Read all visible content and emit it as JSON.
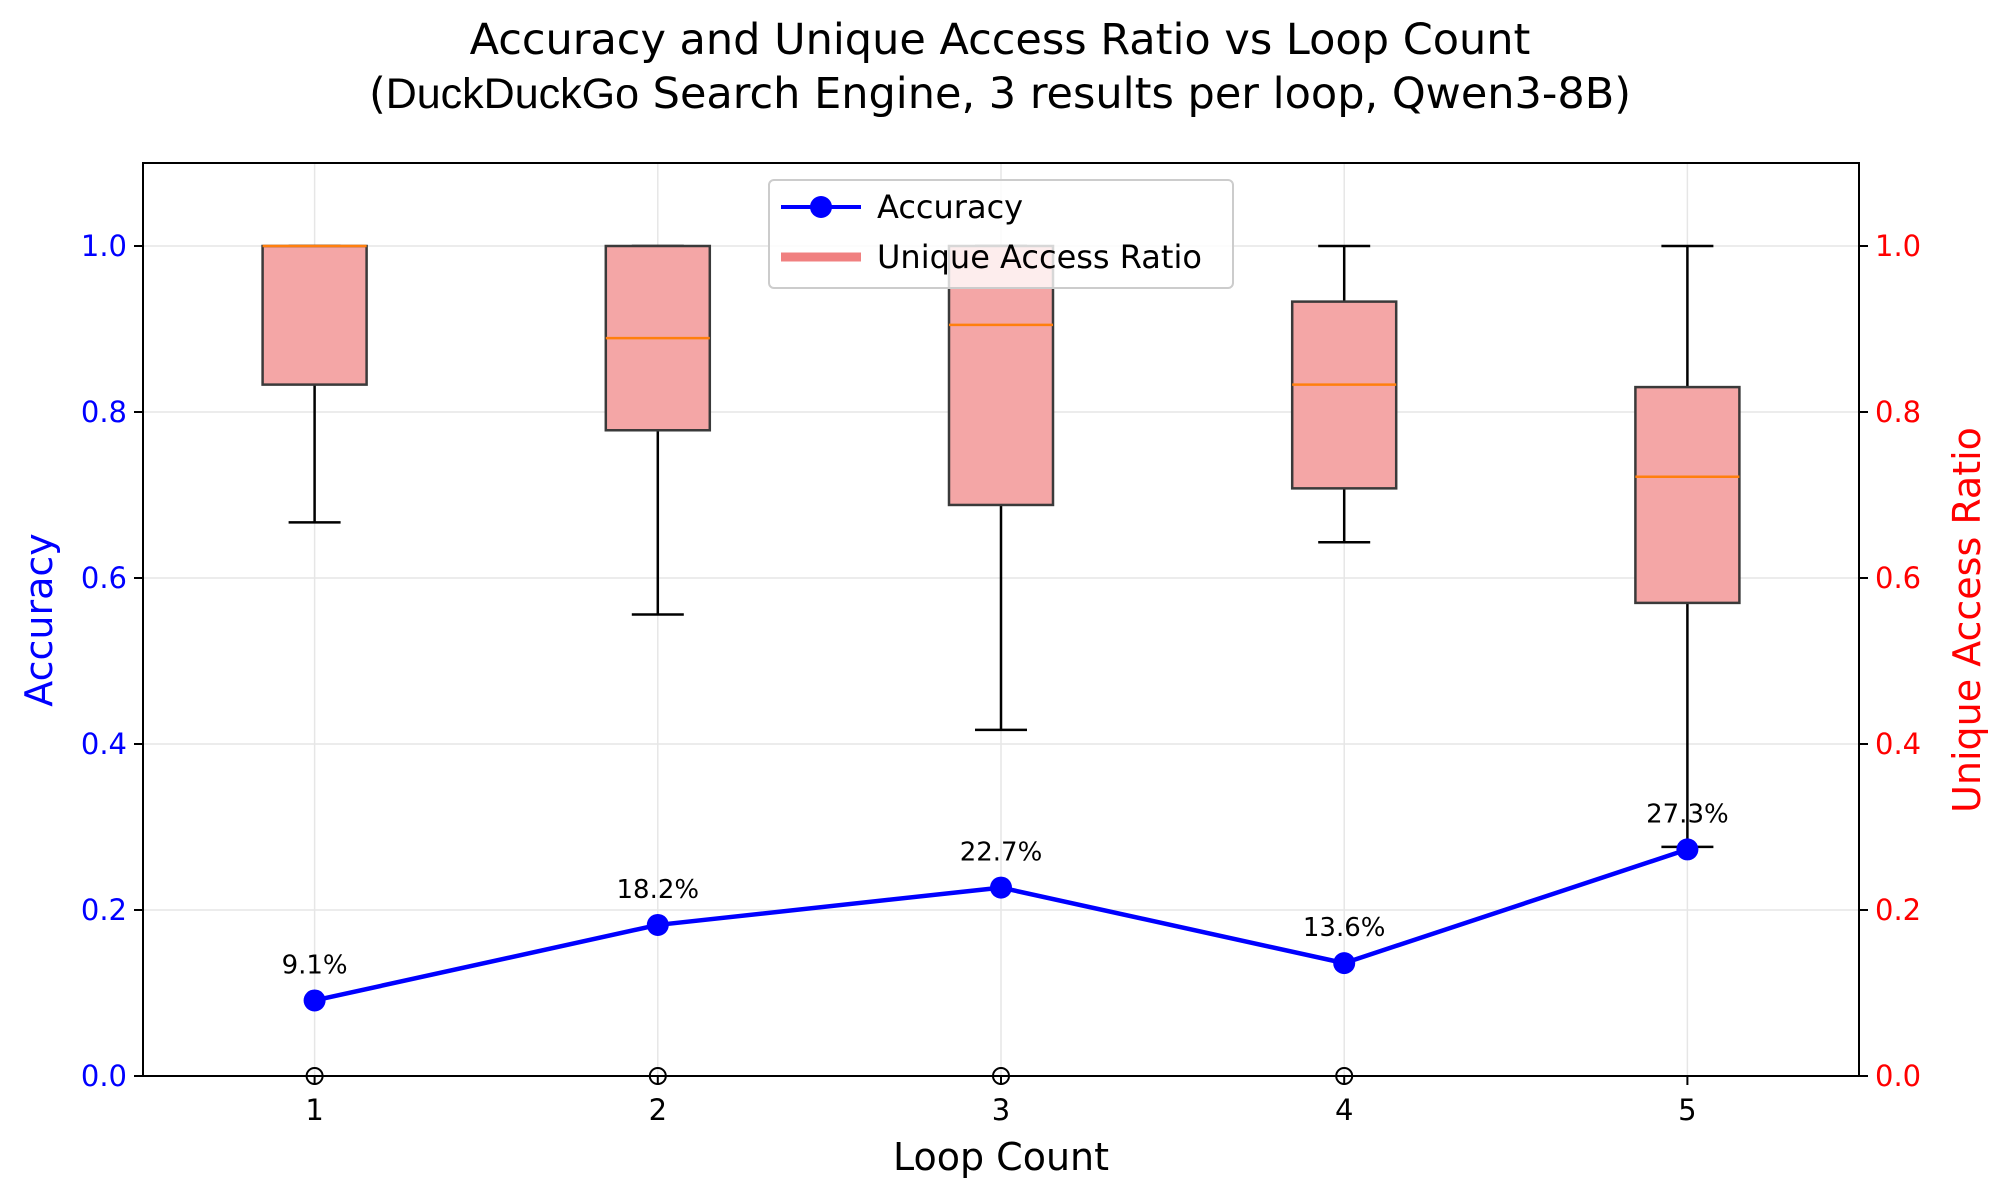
{
  "chart_data": {
    "type": "line",
    "title_line1": "Accuracy and Unique Access Ratio vs Loop Count",
    "title_line2_open": "(",
    "title_highlight": "DuckDuckGo",
    "title_line2_rest": " Search Engine, 3 results per loop, Qwen3-8B)",
    "xlabel": "Loop Count",
    "ylabel_left": "Accuracy",
    "ylabel_right": "Unique Access Ratio",
    "x": [
      1,
      2,
      3,
      4,
      5
    ],
    "x_tick_labels": [
      "1",
      "2",
      "3",
      "4",
      "5"
    ],
    "xlim": [
      0.5,
      5.5
    ],
    "ylim_left": [
      0.0,
      1.1
    ],
    "ylim_right": [
      0.0,
      1.1
    ],
    "y_ticks": [
      0.0,
      0.2,
      0.4,
      0.6,
      0.8,
      1.0
    ],
    "y_tick_labels": [
      "0.0",
      "0.2",
      "0.4",
      "0.6",
      "0.8",
      "1.0"
    ],
    "grid": true,
    "legend_position": "top-center",
    "series": [
      {
        "name": "Accuracy",
        "type": "line",
        "axis": "left",
        "color": "#0000ff",
        "values": [
          0.091,
          0.182,
          0.227,
          0.136,
          0.273
        ],
        "labels": [
          "9.1%",
          "18.2%",
          "22.7%",
          "13.6%",
          "27.3%"
        ]
      },
      {
        "name": "Unique Access Ratio",
        "type": "box",
        "axis": "right",
        "color": "#f08080",
        "boxes": [
          {
            "whislo": 0.667,
            "q1": 0.833,
            "med": 1.0,
            "q3": 1.0,
            "whishi": 1.0,
            "fliers": [
              0.0
            ]
          },
          {
            "whislo": 0.556,
            "q1": 0.778,
            "med": 0.889,
            "q3": 1.0,
            "whishi": 1.0,
            "fliers": [
              0.0
            ]
          },
          {
            "whislo": 0.417,
            "q1": 0.688,
            "med": 0.905,
            "q3": 1.0,
            "whishi": 1.0,
            "fliers": [
              0.0
            ]
          },
          {
            "whislo": 0.643,
            "q1": 0.708,
            "med": 0.833,
            "q3": 0.933,
            "whishi": 1.0,
            "fliers": [
              0.0
            ]
          },
          {
            "whislo": 0.276,
            "q1": 0.57,
            "med": 0.722,
            "q3": 0.83,
            "whishi": 1.0,
            "fliers": []
          }
        ]
      }
    ],
    "colors": {
      "left_axis": "#0000ff",
      "right_axis": "#ff0000",
      "median": "#ff7f0e",
      "box_fill": "#f4a6a6",
      "box_edge": "#3a3a3a",
      "grid": "#e6e6e6"
    }
  }
}
